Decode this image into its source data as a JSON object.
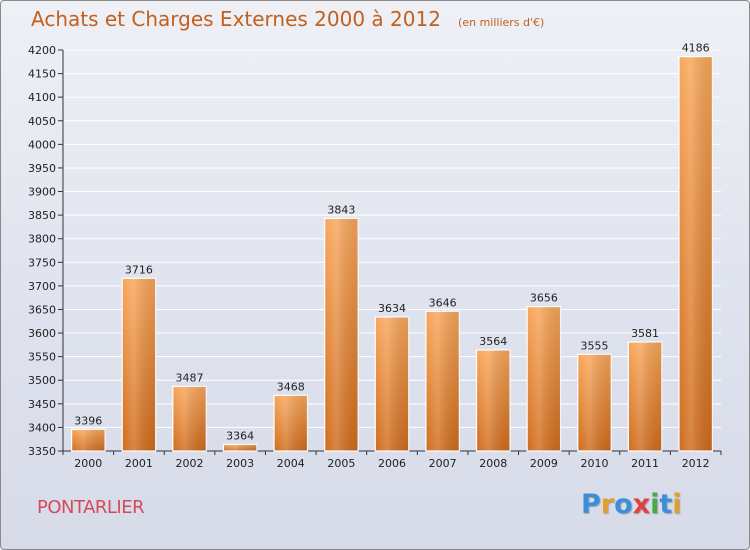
{
  "header": {
    "title": "Achats et Charges Externes 2000 à 2012",
    "subtitle": "(en milliers d'€)"
  },
  "footer": {
    "commune": "PONTARLIER",
    "logo_letters": [
      {
        "char": "P",
        "color": "#3a8fd8"
      },
      {
        "char": "r",
        "color": "#e0a030"
      },
      {
        "char": "o",
        "color": "#3a8fd8"
      },
      {
        "char": "x",
        "color": "#e04040"
      },
      {
        "char": "i",
        "color": "#4aa84a"
      },
      {
        "char": "t",
        "color": "#3a8fd8"
      },
      {
        "char": "i",
        "color": "#e0a030"
      }
    ]
  },
  "colors": {
    "bar_top": "#f8a65a",
    "bar_bottom": "#d06b1b",
    "accent": "#c45f1c"
  },
  "chart_data": {
    "type": "bar",
    "title": "Achats et Charges Externes 2000 à 2012",
    "subtitle": "(en milliers d'€)",
    "categories": [
      "2000",
      "2001",
      "2002",
      "2003",
      "2004",
      "2005",
      "2006",
      "2007",
      "2008",
      "2009",
      "2010",
      "2011",
      "2012"
    ],
    "values": [
      3396,
      3716,
      3487,
      3364,
      3468,
      3843,
      3634,
      3646,
      3564,
      3656,
      3555,
      3581,
      4186
    ],
    "ylim": [
      3350,
      4200
    ],
    "yticks": [
      3350,
      3400,
      3450,
      3500,
      3550,
      3600,
      3650,
      3700,
      3750,
      3800,
      3850,
      3900,
      3950,
      4000,
      4050,
      4100,
      4150,
      4200
    ],
    "grid": true,
    "data_labels": true
  }
}
